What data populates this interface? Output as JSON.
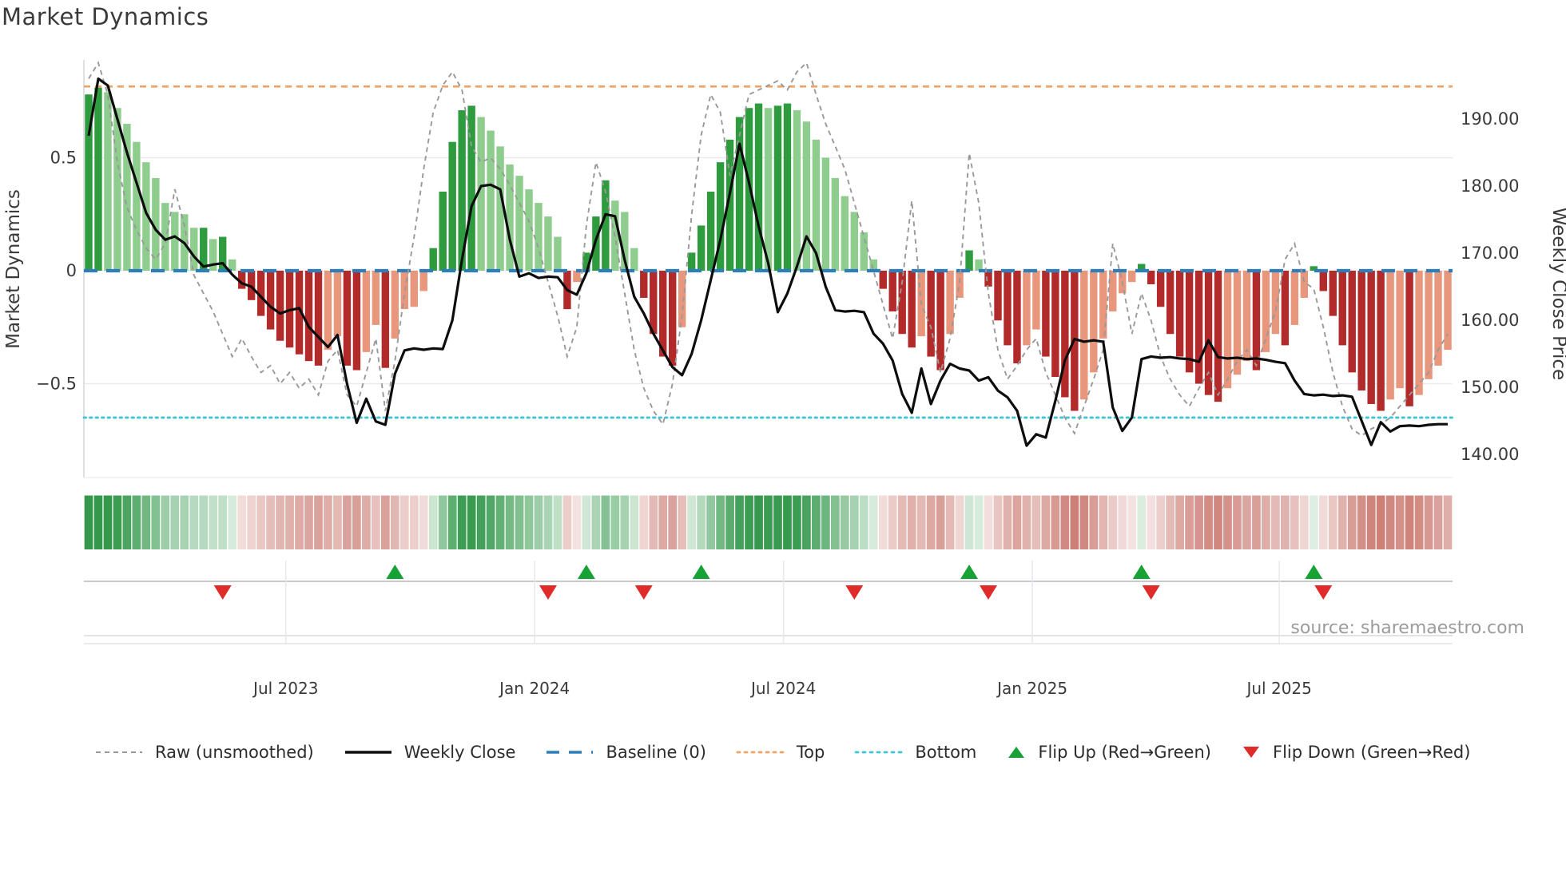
{
  "title": "Market Dynamics",
  "source_text": "source: sharemaestro.com",
  "axes": {
    "left_label": "Market Dynamics",
    "right_label": "Weekly Close Price",
    "left_ticks": [
      {
        "label": "0.5",
        "value": 0.5
      },
      {
        "label": "0",
        "value": 0.0
      },
      {
        "label": "−0.5",
        "value": -0.5
      }
    ],
    "right_ticks": [
      {
        "label": "190.00",
        "value": 190
      },
      {
        "label": "180.00",
        "value": 180
      },
      {
        "label": "170.00",
        "value": 170
      },
      {
        "label": "160.00",
        "value": 160
      },
      {
        "label": "150.00",
        "value": 150
      },
      {
        "label": "140.00",
        "value": 140
      }
    ],
    "x_ticks": [
      {
        "label": "Jul 2023",
        "week": 20.6
      },
      {
        "label": "Jan 2024",
        "week": 46.6
      },
      {
        "label": "Jul 2024",
        "week": 72.6
      },
      {
        "label": "Jan 2025",
        "week": 98.6
      },
      {
        "label": "Jul 2025",
        "week": 124.4
      }
    ]
  },
  "legend": [
    {
      "label": "Raw (unsmoothed)",
      "swatch": "raw-dash"
    },
    {
      "label": "Weekly Close",
      "swatch": "solid-black"
    },
    {
      "label": "Baseline (0)",
      "swatch": "baseline-dash"
    },
    {
      "label": "Top",
      "swatch": "top-dots"
    },
    {
      "label": "Bottom",
      "swatch": "bottom-dots"
    },
    {
      "label": "Flip Up (Red→Green)",
      "swatch": "triangle-up"
    },
    {
      "label": "Flip Down (Green→Red)",
      "swatch": "triangle-down"
    }
  ],
  "palette": {
    "bar_pos_rising": "#2e9c3e",
    "bar_pos_falling": "#8fcd8f",
    "bar_neg_falling": "#b22a2a",
    "bar_neg_rising": "#e8967c",
    "close_line": "#0d0d0d",
    "raw_line": "#999999",
    "baseline": "#2e7ebc",
    "top_line": "#f0a365",
    "bottom_line": "#3ec6d8",
    "flip_up": "#17a235",
    "flip_down": "#e02b2b",
    "grid": "#e9e9ef",
    "spine": "#d5d5dc",
    "heat_green_max": "#34984c",
    "heat_red_max": "#c46a60",
    "tick_text": "#3a3a3a",
    "source_text_color": "#9b9b9b"
  },
  "chart_data": {
    "type": "bar",
    "title": "Market Dynamics",
    "xlabel": "",
    "ylabel_left": "Market Dynamics",
    "ylabel_right": "Weekly Close Price",
    "weeks": 143,
    "ylim_left": [
      -0.92,
      0.93
    ],
    "ylim_right": [
      136.5,
      198.8
    ],
    "baseline": 0,
    "top_threshold": 0.815,
    "bottom_threshold": -0.65,
    "legend_position": "bottom",
    "grid": true,
    "series": [
      {
        "name": "Market Dynamics (smoothed bars)",
        "type": "bar",
        "axis": "left",
        "values": [
          0.78,
          0.81,
          0.79,
          0.72,
          0.65,
          0.57,
          0.48,
          0.41,
          0.3,
          0.26,
          0.25,
          0.19,
          0.19,
          0.14,
          0.15,
          0.05,
          -0.08,
          -0.13,
          -0.2,
          -0.26,
          -0.31,
          -0.34,
          -0.37,
          -0.4,
          -0.42,
          -0.35,
          -0.29,
          -0.42,
          -0.44,
          -0.36,
          -0.24,
          -0.43,
          -0.3,
          -0.17,
          -0.16,
          -0.09,
          0.1,
          0.35,
          0.57,
          0.71,
          0.73,
          0.68,
          0.62,
          0.55,
          0.47,
          0.42,
          0.36,
          0.3,
          0.24,
          0.15,
          -0.17,
          -0.05,
          0.08,
          0.24,
          0.4,
          0.31,
          0.26,
          0.1,
          -0.12,
          -0.28,
          -0.38,
          -0.42,
          -0.25,
          0.08,
          0.2,
          0.35,
          0.48,
          0.58,
          0.68,
          0.72,
          0.74,
          0.72,
          0.73,
          0.74,
          0.71,
          0.66,
          0.58,
          0.5,
          0.41,
          0.33,
          0.26,
          0.17,
          0.05,
          -0.08,
          -0.18,
          -0.28,
          -0.34,
          -0.29,
          -0.38,
          -0.44,
          -0.28,
          -0.12,
          0.09,
          0.05,
          -0.07,
          -0.22,
          -0.33,
          -0.41,
          -0.33,
          -0.26,
          -0.38,
          -0.47,
          -0.56,
          -0.62,
          -0.57,
          -0.45,
          -0.3,
          -0.18,
          -0.1,
          -0.05,
          0.03,
          -0.06,
          -0.16,
          -0.28,
          -0.38,
          -0.45,
          -0.5,
          -0.55,
          -0.58,
          -0.52,
          -0.46,
          -0.4,
          -0.44,
          -0.36,
          -0.28,
          -0.33,
          -0.24,
          -0.12,
          0.02,
          -0.09,
          -0.2,
          -0.33,
          -0.45,
          -0.53,
          -0.59,
          -0.62,
          -0.57,
          -0.52,
          -0.6,
          -0.55,
          -0.48,
          -0.42,
          -0.35
        ]
      },
      {
        "name": "Weekly Close",
        "type": "line",
        "axis": "right",
        "values": [
          187.5,
          196.0,
          195.0,
          190.0,
          185.0,
          180.5,
          176.0,
          173.5,
          172.0,
          172.5,
          171.5,
          169.5,
          168.0,
          168.3,
          168.5,
          166.8,
          165.5,
          165.0,
          163.5,
          162.0,
          161.0,
          161.5,
          161.8,
          159.0,
          157.5,
          156.0,
          157.8,
          150.5,
          144.7,
          148.3,
          144.9,
          144.4,
          152.0,
          155.5,
          155.8,
          155.6,
          155.8,
          155.7,
          160.0,
          169.0,
          177.0,
          180.0,
          180.2,
          179.5,
          172.0,
          166.5,
          167.0,
          166.3,
          166.5,
          166.4,
          164.5,
          163.8,
          167.0,
          172.0,
          175.8,
          175.5,
          169.0,
          163.5,
          161.0,
          158.0,
          155.5,
          153.0,
          151.8,
          155.0,
          160.0,
          166.0,
          172.0,
          179.0,
          186.3,
          180.5,
          174.0,
          168.5,
          161.2,
          164.0,
          168.0,
          172.5,
          170.0,
          165.0,
          161.5,
          161.3,
          161.4,
          161.2,
          158.0,
          156.5,
          154.0,
          149.0,
          146.2,
          152.8,
          147.5,
          151.0,
          153.5,
          152.8,
          152.5,
          151.0,
          151.5,
          149.5,
          148.5,
          146.5,
          141.3,
          143.0,
          142.5,
          148.0,
          154.0,
          157.2,
          156.8,
          157.0,
          156.8,
          147.0,
          143.5,
          145.5,
          154.2,
          154.6,
          154.4,
          154.5,
          154.3,
          154.2,
          153.8,
          157.0,
          154.5,
          154.3,
          154.4,
          154.2,
          154.3,
          154.1,
          153.8,
          153.6,
          151.0,
          149.0,
          148.8,
          148.9,
          148.7,
          148.8,
          148.6,
          145.0,
          141.4,
          144.8,
          143.4,
          144.2,
          144.3,
          144.2,
          144.4,
          144.5,
          144.5
        ]
      },
      {
        "name": "Raw (unsmoothed)",
        "type": "line",
        "axis": "left",
        "values": [
          0.85,
          0.92,
          0.78,
          0.48,
          0.28,
          0.18,
          0.1,
          0.05,
          0.12,
          0.36,
          0.2,
          -0.02,
          -0.1,
          -0.18,
          -0.28,
          -0.38,
          -0.3,
          -0.38,
          -0.45,
          -0.42,
          -0.5,
          -0.45,
          -0.52,
          -0.48,
          -0.55,
          -0.4,
          -0.35,
          -0.55,
          -0.6,
          -0.45,
          -0.3,
          -0.62,
          -0.4,
          -0.1,
          0.15,
          0.45,
          0.7,
          0.82,
          0.88,
          0.8,
          0.55,
          0.48,
          0.5,
          0.45,
          0.38,
          0.3,
          0.22,
          0.1,
          -0.05,
          -0.2,
          -0.38,
          -0.25,
          0.2,
          0.48,
          0.35,
          0.15,
          -0.1,
          -0.35,
          -0.52,
          -0.62,
          -0.68,
          -0.5,
          -0.2,
          0.25,
          0.6,
          0.78,
          0.7,
          0.42,
          0.6,
          0.78,
          0.8,
          0.82,
          0.84,
          0.8,
          0.88,
          0.92,
          0.78,
          0.65,
          0.55,
          0.45,
          0.3,
          0.15,
          0.0,
          -0.15,
          -0.3,
          -0.05,
          0.31,
          -0.15,
          -0.25,
          -0.45,
          -0.3,
          -0.05,
          0.52,
          0.3,
          -0.1,
          -0.35,
          -0.48,
          -0.42,
          -0.35,
          -0.3,
          -0.45,
          -0.55,
          -0.65,
          -0.72,
          -0.6,
          -0.48,
          -0.35,
          0.12,
          -0.05,
          -0.28,
          -0.1,
          -0.22,
          -0.38,
          -0.48,
          -0.55,
          -0.6,
          -0.52,
          -0.45,
          -0.55,
          -0.48,
          -0.4,
          -0.35,
          -0.42,
          -0.3,
          -0.18,
          0.05,
          0.12,
          -0.05,
          -0.08,
          -0.25,
          -0.45,
          -0.6,
          -0.7,
          -0.73,
          -0.7,
          -0.68,
          -0.65,
          -0.6,
          -0.55,
          -0.5,
          -0.45,
          -0.35,
          -0.28
        ]
      }
    ],
    "flip_up_weeks": [
      32,
      52,
      64,
      92,
      110,
      128
    ],
    "flip_down_weeks": [
      14,
      48,
      58,
      80,
      94,
      111,
      129
    ]
  }
}
